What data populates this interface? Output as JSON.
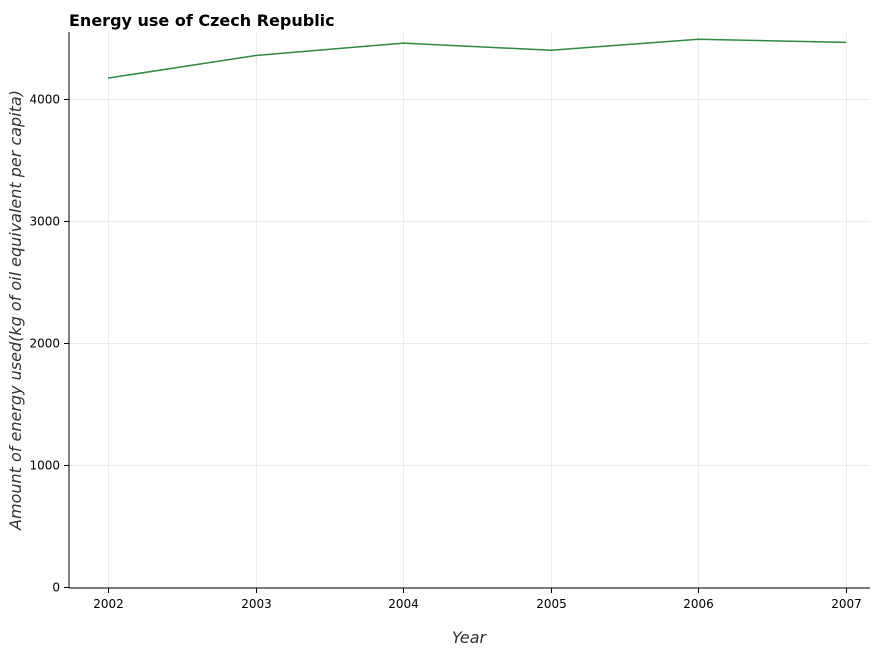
{
  "chart_data": {
    "type": "line",
    "title": "Energy use of Czech Republic",
    "xlabel": "Year",
    "ylabel": "Amount of energy used(kg of oil equivalent per capita)",
    "categories": [
      "2002",
      "2003",
      "2004",
      "2005",
      "2006",
      "2007"
    ],
    "series": [
      {
        "values": [
          4172,
          4357,
          4459,
          4401,
          4490,
          4465
        ]
      }
    ],
    "yticks": [
      0,
      1000,
      2000,
      3000,
      4000
    ],
    "ytick_labels": [
      "0",
      "1000",
      "2000",
      "3000",
      "4000"
    ],
    "ylim": [
      -10,
      4550
    ],
    "grid": true,
    "line_color": "#2e8b3e"
  }
}
